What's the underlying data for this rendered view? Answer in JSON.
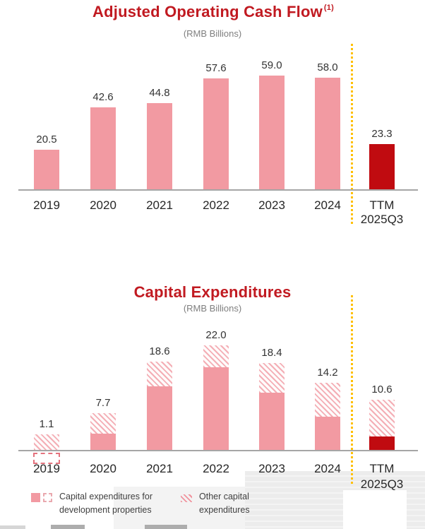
{
  "colors": {
    "title_red": "#C11A21",
    "bar_pink": "#F29AA2",
    "bar_dark_red": "#C00B10",
    "hatch_stripe": "#F4AEB5",
    "axis_gray": "#A6A6A6",
    "separator_yellow": "#FFC000",
    "value_label": "#333333",
    "category_label": "#262626",
    "subtitle_gray": "#7F7F7F",
    "negative_outline": "#E4737E"
  },
  "chart_data": [
    {
      "type": "bar",
      "title": "Adjusted Operating Cash Flow",
      "footnote_marker": "(1)",
      "subtitle": "(RMB Billions)",
      "categories": [
        "2019",
        "2020",
        "2021",
        "2022",
        "2023",
        "2024",
        "TTM 2025Q3"
      ],
      "values": [
        20.5,
        42.6,
        44.8,
        57.6,
        59.0,
        58.0,
        23.3
      ],
      "value_labels": [
        "20.5",
        "42.6",
        "44.8",
        "57.6",
        "59.0",
        "58.0",
        "23.3"
      ],
      "highlight_last_bar": true,
      "separator_before_category": "TTM 2025Q3",
      "ylim": [
        0,
        65
      ],
      "grid": false,
      "legend_position": "none"
    },
    {
      "type": "stacked-bar",
      "title": "Capital Expenditures",
      "subtitle": "(RMB Billions)",
      "categories": [
        "2019",
        "2020",
        "2021",
        "2022",
        "2023",
        "2024",
        "TTM 2025Q3"
      ],
      "totals": [
        1.1,
        7.7,
        18.6,
        22.0,
        18.4,
        14.2,
        10.6
      ],
      "total_labels": [
        "1.1",
        "7.7",
        "18.6",
        "22.0",
        "18.4",
        "14.2",
        "10.6"
      ],
      "series": [
        {
          "name": "Capital expenditures for development properties",
          "style": "solid",
          "values_estimated": [
            -2.7,
            3.4,
            13.4,
            17.4,
            12.1,
            7.0,
            2.8
          ],
          "note_2019": "shown as dashed outline below axis (negative)"
        },
        {
          "name": "Other capital expenditures",
          "style": "hatch",
          "values_estimated": [
            3.3,
            4.3,
            5.2,
            4.6,
            6.3,
            7.2,
            7.8
          ]
        }
      ],
      "highlight_last_bar": true,
      "separator_before_category": "TTM 2025Q3",
      "ylim": [
        -3,
        24
      ],
      "grid": false,
      "legend_position": "bottom"
    }
  ]
}
